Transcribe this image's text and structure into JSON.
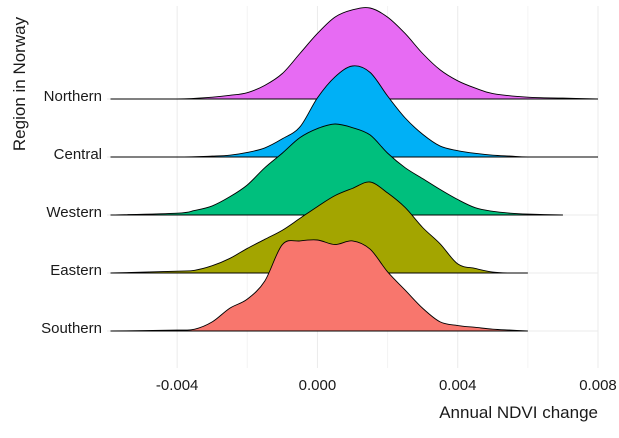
{
  "chart_data": {
    "type": "ridgeline",
    "xlabel": "Annual NDVI change",
    "ylabel": "Region in Norway",
    "xlim": [
      -0.006,
      0.008
    ],
    "xticks": [
      -0.004,
      0.0,
      0.004,
      0.008
    ],
    "xtick_labels": [
      "-0.004",
      "0.000",
      "0.004",
      "0.008"
    ],
    "grid": true,
    "legend": "none",
    "categories": [
      "Southern",
      "Eastern",
      "Western",
      "Central",
      "Northern"
    ],
    "series": [
      {
        "name": "Southern",
        "color": "#F8766D",
        "x": [
          -0.0059,
          -0.004,
          -0.0035,
          -0.003,
          -0.0025,
          -0.002,
          -0.0015,
          -0.001,
          -0.0005,
          0.0,
          0.0005,
          0.001,
          0.0015,
          0.002,
          0.0025,
          0.003,
          0.0035,
          0.004,
          0.0045,
          0.005,
          0.0055,
          0.006
        ],
        "density": [
          0.0,
          0.01,
          0.02,
          0.1,
          0.25,
          0.35,
          0.55,
          0.95,
          0.99,
          1.0,
          0.95,
          0.99,
          0.9,
          0.65,
          0.45,
          0.25,
          0.1,
          0.06,
          0.04,
          0.02,
          0.01,
          0.0
        ]
      },
      {
        "name": "Eastern",
        "color": "#A3A500",
        "x": [
          -0.0059,
          -0.004,
          -0.0035,
          -0.003,
          -0.0025,
          -0.002,
          -0.0015,
          -0.001,
          -0.0005,
          0.0,
          0.0005,
          0.001,
          0.0015,
          0.002,
          0.0025,
          0.003,
          0.0035,
          0.004,
          0.0045,
          0.005,
          0.0055,
          0.006
        ],
        "density": [
          0.0,
          0.02,
          0.03,
          0.08,
          0.16,
          0.27,
          0.37,
          0.47,
          0.6,
          0.73,
          0.85,
          0.93,
          1.0,
          0.88,
          0.72,
          0.5,
          0.32,
          0.1,
          0.05,
          0.01,
          0.0,
          0.0
        ]
      },
      {
        "name": "Western",
        "color": "#00BF7D",
        "x": [
          -0.0059,
          -0.004,
          -0.0035,
          -0.003,
          -0.0025,
          -0.002,
          -0.0015,
          -0.001,
          -0.0005,
          0.0,
          0.0005,
          0.001,
          0.0015,
          0.002,
          0.0025,
          0.003,
          0.0035,
          0.004,
          0.0045,
          0.005,
          0.0055,
          0.006,
          0.007
        ],
        "density": [
          0.0,
          0.02,
          0.05,
          0.1,
          0.2,
          0.33,
          0.52,
          0.68,
          0.85,
          0.95,
          1.0,
          0.96,
          0.88,
          0.68,
          0.52,
          0.4,
          0.28,
          0.17,
          0.08,
          0.04,
          0.02,
          0.01,
          0.0
        ]
      },
      {
        "name": "Central",
        "color": "#00B0F6",
        "x": [
          -0.0059,
          -0.004,
          -0.003,
          -0.0025,
          -0.002,
          -0.0015,
          -0.001,
          -0.0005,
          0.0,
          0.0005,
          0.001,
          0.0015,
          0.002,
          0.0025,
          0.003,
          0.0035,
          0.004,
          0.0045,
          0.005,
          0.0055,
          0.006,
          0.007,
          0.008
        ],
        "density": [
          0.0,
          0.0,
          0.01,
          0.02,
          0.05,
          0.1,
          0.2,
          0.33,
          0.65,
          0.88,
          1.0,
          0.93,
          0.67,
          0.43,
          0.25,
          0.12,
          0.07,
          0.04,
          0.02,
          0.01,
          0.0,
          0.0,
          0.0
        ]
      },
      {
        "name": "Northern",
        "color": "#E76BF3",
        "x": [
          -0.0059,
          -0.004,
          -0.003,
          -0.0025,
          -0.002,
          -0.0015,
          -0.001,
          -0.0005,
          0.0,
          0.0005,
          0.001,
          0.0015,
          0.002,
          0.0025,
          0.003,
          0.0035,
          0.004,
          0.0045,
          0.005,
          0.006,
          0.007,
          0.008
        ],
        "density": [
          0.0,
          0.0,
          0.02,
          0.04,
          0.07,
          0.15,
          0.28,
          0.5,
          0.72,
          0.9,
          0.98,
          1.0,
          0.9,
          0.72,
          0.5,
          0.32,
          0.2,
          0.12,
          0.06,
          0.02,
          0.01,
          0.0
        ]
      }
    ]
  }
}
